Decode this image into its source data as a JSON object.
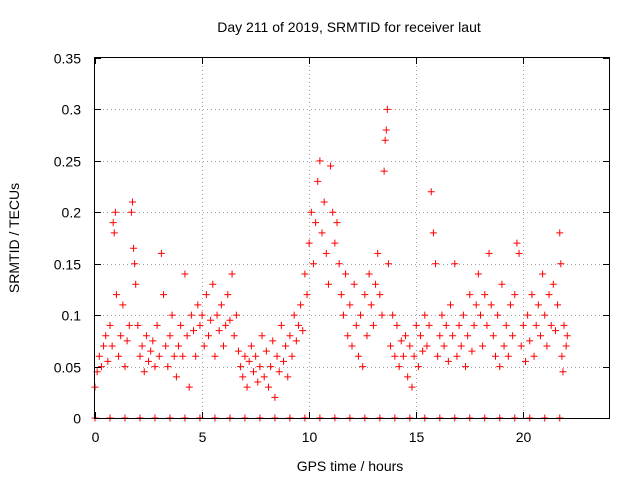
{
  "chart_data": {
    "type": "scatter",
    "title": "Day 211 of 2019, SRMTID for receiver laut",
    "xlabel": "GPS time / hours",
    "ylabel": "SRMTID / TECUs",
    "xlim": [
      0,
      24
    ],
    "ylim": [
      0,
      0.35
    ],
    "xticks": [
      0,
      5,
      10,
      15,
      20
    ],
    "xtick_labels": [
      "0",
      "5",
      "10",
      "15",
      "20"
    ],
    "yticks": [
      0,
      0.05,
      0.1,
      0.15,
      0.2,
      0.25,
      0.3,
      0.35
    ],
    "ytick_labels": [
      "0",
      "0.05",
      "0.1",
      "0.15",
      "0.2",
      "0.25",
      "0.3",
      "0.35"
    ],
    "grid": true,
    "marker": "+",
    "color": "#ff0000",
    "series": [
      {
        "name": "SRMTID",
        "points": [
          [
            0.0,
            0.03
          ],
          [
            0.1,
            0.045
          ],
          [
            0.2,
            0.06
          ],
          [
            0.3,
            0.05
          ],
          [
            0.4,
            0.07
          ],
          [
            0.5,
            0.08
          ],
          [
            0.6,
            0.055
          ],
          [
            0.7,
            0.09
          ],
          [
            0.8,
            0.07
          ],
          [
            0.85,
            0.19
          ],
          [
            0.9,
            0.18
          ],
          [
            0.95,
            0.2
          ],
          [
            1.0,
            0.12
          ],
          [
            1.1,
            0.06
          ],
          [
            1.2,
            0.08
          ],
          [
            1.3,
            0.11
          ],
          [
            1.4,
            0.05
          ],
          [
            1.5,
            0.075
          ],
          [
            1.6,
            0.09
          ],
          [
            1.7,
            0.2
          ],
          [
            1.75,
            0.21
          ],
          [
            1.8,
            0.165
          ],
          [
            1.85,
            0.15
          ],
          [
            1.9,
            0.13
          ],
          [
            2.0,
            0.09
          ],
          [
            2.1,
            0.06
          ],
          [
            2.2,
            0.07
          ],
          [
            2.3,
            0.045
          ],
          [
            2.4,
            0.08
          ],
          [
            2.5,
            0.055
          ],
          [
            2.6,
            0.065
          ],
          [
            2.7,
            0.075
          ],
          [
            2.8,
            0.05
          ],
          [
            2.9,
            0.09
          ],
          [
            3.0,
            0.06
          ],
          [
            3.1,
            0.16
          ],
          [
            3.2,
            0.12
          ],
          [
            3.3,
            0.07
          ],
          [
            3.4,
            0.05
          ],
          [
            3.5,
            0.08
          ],
          [
            3.6,
            0.1
          ],
          [
            3.7,
            0.06
          ],
          [
            3.8,
            0.04
          ],
          [
            3.9,
            0.07
          ],
          [
            4.0,
            0.09
          ],
          [
            4.1,
            0.06
          ],
          [
            4.2,
            0.14
          ],
          [
            4.3,
            0.08
          ],
          [
            4.4,
            0.03
          ],
          [
            4.5,
            0.1
          ],
          [
            4.6,
            0.085
          ],
          [
            4.7,
            0.06
          ],
          [
            4.8,
            0.11
          ],
          [
            4.9,
            0.09
          ],
          [
            5.0,
            0.1
          ],
          [
            5.1,
            0.07
          ],
          [
            5.2,
            0.12
          ],
          [
            5.3,
            0.08
          ],
          [
            5.4,
            0.095
          ],
          [
            5.5,
            0.13
          ],
          [
            5.6,
            0.06
          ],
          [
            5.7,
            0.1
          ],
          [
            5.8,
            0.085
          ],
          [
            5.9,
            0.11
          ],
          [
            6.0,
            0.07
          ],
          [
            6.1,
            0.09
          ],
          [
            6.2,
            0.12
          ],
          [
            6.3,
            0.095
          ],
          [
            6.4,
            0.14
          ],
          [
            6.5,
            0.08
          ],
          [
            6.6,
            0.1
          ],
          [
            6.7,
            0.065
          ],
          [
            6.8,
            0.05
          ],
          [
            6.9,
            0.04
          ],
          [
            7.0,
            0.06
          ],
          [
            7.1,
            0.03
          ],
          [
            7.2,
            0.055
          ],
          [
            7.3,
            0.07
          ],
          [
            7.4,
            0.045
          ],
          [
            7.5,
            0.06
          ],
          [
            7.6,
            0.035
          ],
          [
            7.7,
            0.05
          ],
          [
            7.8,
            0.08
          ],
          [
            7.9,
            0.04
          ],
          [
            8.0,
            0.065
          ],
          [
            8.1,
            0.03
          ],
          [
            8.2,
            0.05
          ],
          [
            8.3,
            0.075
          ],
          [
            8.4,
            0.02
          ],
          [
            8.5,
            0.06
          ],
          [
            8.6,
            0.045
          ],
          [
            8.7,
            0.09
          ],
          [
            8.8,
            0.055
          ],
          [
            8.9,
            0.07
          ],
          [
            9.0,
            0.04
          ],
          [
            9.1,
            0.08
          ],
          [
            9.2,
            0.06
          ],
          [
            9.3,
            0.1
          ],
          [
            9.4,
            0.075
          ],
          [
            9.5,
            0.09
          ],
          [
            9.6,
            0.11
          ],
          [
            9.7,
            0.085
          ],
          [
            9.8,
            0.14
          ],
          [
            9.9,
            0.12
          ],
          [
            10.0,
            0.17
          ],
          [
            10.1,
            0.2
          ],
          [
            10.2,
            0.15
          ],
          [
            10.3,
            0.19
          ],
          [
            10.4,
            0.23
          ],
          [
            10.5,
            0.25
          ],
          [
            10.6,
            0.18
          ],
          [
            10.7,
            0.21
          ],
          [
            10.8,
            0.16
          ],
          [
            10.9,
            0.13
          ],
          [
            11.0,
            0.245
          ],
          [
            11.1,
            0.2
          ],
          [
            11.2,
            0.17
          ],
          [
            11.3,
            0.19
          ],
          [
            11.4,
            0.15
          ],
          [
            11.5,
            0.12
          ],
          [
            11.6,
            0.1
          ],
          [
            11.7,
            0.14
          ],
          [
            11.8,
            0.08
          ],
          [
            11.9,
            0.11
          ],
          [
            12.0,
            0.07
          ],
          [
            12.1,
            0.13
          ],
          [
            12.2,
            0.09
          ],
          [
            12.3,
            0.06
          ],
          [
            12.4,
            0.1
          ],
          [
            12.5,
            0.05
          ],
          [
            12.6,
            0.12
          ],
          [
            12.7,
            0.08
          ],
          [
            12.8,
            0.14
          ],
          [
            12.9,
            0.11
          ],
          [
            13.0,
            0.09
          ],
          [
            13.1,
            0.13
          ],
          [
            13.2,
            0.16
          ],
          [
            13.3,
            0.12
          ],
          [
            13.4,
            0.1
          ],
          [
            13.5,
            0.24
          ],
          [
            13.55,
            0.27
          ],
          [
            13.6,
            0.28
          ],
          [
            13.65,
            0.3
          ],
          [
            13.7,
            0.15
          ],
          [
            13.8,
            0.07
          ],
          [
            13.9,
            0.1
          ],
          [
            14.0,
            0.06
          ],
          [
            14.1,
            0.09
          ],
          [
            14.2,
            0.05
          ],
          [
            14.3,
            0.075
          ],
          [
            14.4,
            0.06
          ],
          [
            14.5,
            0.08
          ],
          [
            14.6,
            0.04
          ],
          [
            14.7,
            0.07
          ],
          [
            14.8,
            0.03
          ],
          [
            14.9,
            0.06
          ],
          [
            15.0,
            0.09
          ],
          [
            15.1,
            0.05
          ],
          [
            15.2,
            0.08
          ],
          [
            15.3,
            0.065
          ],
          [
            15.4,
            0.1
          ],
          [
            15.5,
            0.07
          ],
          [
            15.6,
            0.09
          ],
          [
            15.7,
            0.22
          ],
          [
            15.8,
            0.18
          ],
          [
            15.9,
            0.15
          ],
          [
            16.0,
            0.06
          ],
          [
            16.1,
            0.08
          ],
          [
            16.2,
            0.1
          ],
          [
            16.3,
            0.07
          ],
          [
            16.4,
            0.09
          ],
          [
            16.5,
            0.055
          ],
          [
            16.6,
            0.11
          ],
          [
            16.7,
            0.08
          ],
          [
            16.8,
            0.15
          ],
          [
            16.9,
            0.06
          ],
          [
            17.0,
            0.09
          ],
          [
            17.1,
            0.07
          ],
          [
            17.2,
            0.1
          ],
          [
            17.3,
            0.05
          ],
          [
            17.4,
            0.08
          ],
          [
            17.5,
            0.12
          ],
          [
            17.6,
            0.065
          ],
          [
            17.7,
            0.09
          ],
          [
            17.8,
            0.11
          ],
          [
            17.9,
            0.14
          ],
          [
            18.0,
            0.1
          ],
          [
            18.1,
            0.07
          ],
          [
            18.2,
            0.12
          ],
          [
            18.3,
            0.09
          ],
          [
            18.4,
            0.16
          ],
          [
            18.5,
            0.11
          ],
          [
            18.6,
            0.08
          ],
          [
            18.7,
            0.06
          ],
          [
            18.8,
            0.1
          ],
          [
            18.9,
            0.05
          ],
          [
            19.0,
            0.13
          ],
          [
            19.1,
            0.07
          ],
          [
            19.2,
            0.09
          ],
          [
            19.3,
            0.06
          ],
          [
            19.4,
            0.11
          ],
          [
            19.5,
            0.08
          ],
          [
            19.6,
            0.12
          ],
          [
            19.7,
            0.17
          ],
          [
            19.8,
            0.16
          ],
          [
            19.9,
            0.07
          ],
          [
            20.0,
            0.09
          ],
          [
            20.1,
            0.055
          ],
          [
            20.2,
            0.1
          ],
          [
            20.3,
            0.075
          ],
          [
            20.4,
            0.12
          ],
          [
            20.5,
            0.06
          ],
          [
            20.6,
            0.09
          ],
          [
            20.7,
            0.11
          ],
          [
            20.8,
            0.08
          ],
          [
            20.9,
            0.14
          ],
          [
            21.0,
            0.1
          ],
          [
            21.1,
            0.07
          ],
          [
            21.2,
            0.12
          ],
          [
            21.3,
            0.09
          ],
          [
            21.4,
            0.13
          ],
          [
            21.5,
            0.085
          ],
          [
            21.6,
            0.11
          ],
          [
            21.7,
            0.18
          ],
          [
            21.75,
            0.15
          ],
          [
            21.8,
            0.06
          ],
          [
            21.85,
            0.045
          ],
          [
            21.9,
            0.09
          ],
          [
            22.0,
            0.07
          ],
          [
            22.05,
            0.08
          ]
        ]
      }
    ],
    "data_gaps_marked_at_zero": true
  }
}
